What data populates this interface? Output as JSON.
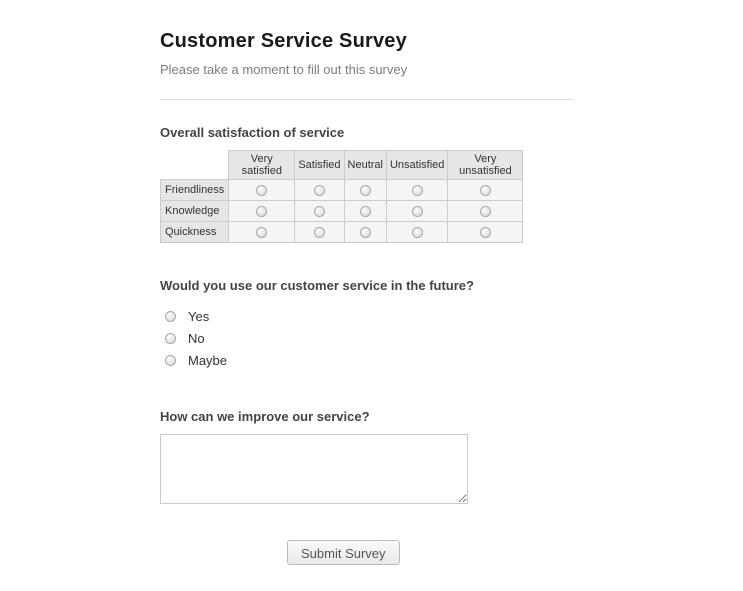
{
  "header": {
    "title": "Customer Service Survey",
    "subtitle": "Please take a moment to fill out this survey"
  },
  "matrix": {
    "label": "Overall satisfaction of service",
    "columns": [
      "Very satisfied",
      "Satisfied",
      "Neutral",
      "Unsatisfied",
      "Very unsatisfied"
    ],
    "rows": [
      "Friendliness",
      "Knowledge",
      "Quickness"
    ]
  },
  "future_question": {
    "label": "Would you use our customer service in the future?",
    "options": [
      "Yes",
      "No",
      "Maybe"
    ]
  },
  "improve_question": {
    "label": "How can we improve our service?",
    "value": ""
  },
  "submit_button": {
    "label": "Submit Survey"
  }
}
